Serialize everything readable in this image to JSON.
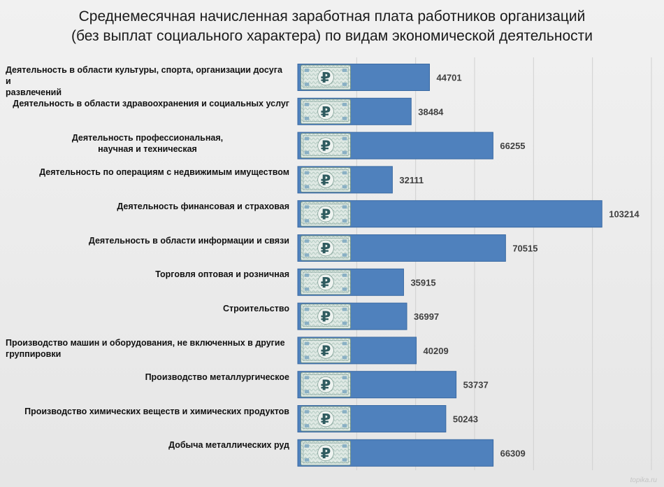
{
  "title_lines": [
    "Среднемесячная начисленная заработная плата работников организаций",
    "(без выплат социального характера) по видам экономической деятельности"
  ],
  "watermark": "topika.ru",
  "colors": {
    "bar": "#4f81bd",
    "bar_border": "#3a6aa3",
    "value_text": "#404040",
    "grid": "#d0d0d0",
    "banknote": "#8fb1a8"
  },
  "icons": {
    "bar_badge": "ruble-banknote-icon"
  },
  "chart_data": {
    "type": "bar",
    "orientation": "horizontal",
    "title": "Среднемесячная начисленная заработная плата работников организаций (без выплат социального характера) по видам экономической деятельности",
    "categories": [
      [
        "Деятельность в области культуры, спорта, организации досуга и",
        "развлечений"
      ],
      [
        "Деятельность в области здравоохранения и социальных услуг"
      ],
      [
        "Деятельность профессиональная,",
        "научная и техническая"
      ],
      [
        "Деятельность по операциям с недвижимым имуществом"
      ],
      [
        "Деятельность финансовая и страховая"
      ],
      [
        "Деятельность в области информации и связи"
      ],
      [
        "Торговля оптовая и розничная"
      ],
      [
        "Строительство"
      ],
      [
        "Производство машин и оборудования, не включенных в другие",
        "группировки"
      ],
      [
        "Производство металлургическое"
      ],
      [
        "Производство химических веществ и химических продуктов"
      ],
      [
        "Добыча металлических руд"
      ]
    ],
    "label_align": [
      "left",
      "right",
      "center",
      "right",
      "right",
      "right",
      "right",
      "right",
      "left",
      "right",
      "right",
      "right"
    ],
    "values": [
      44701,
      38484,
      66255,
      32111,
      103214,
      70515,
      35915,
      36997,
      40209,
      53737,
      50243,
      66309
    ],
    "value_labels": [
      "44701",
      "38484",
      "66255",
      "32111",
      "103214",
      "70515",
      "35915",
      "36997",
      "40209",
      "53737",
      "50243",
      "66309"
    ],
    "xlim": [
      0,
      120000
    ],
    "grid": true,
    "legend": false
  }
}
